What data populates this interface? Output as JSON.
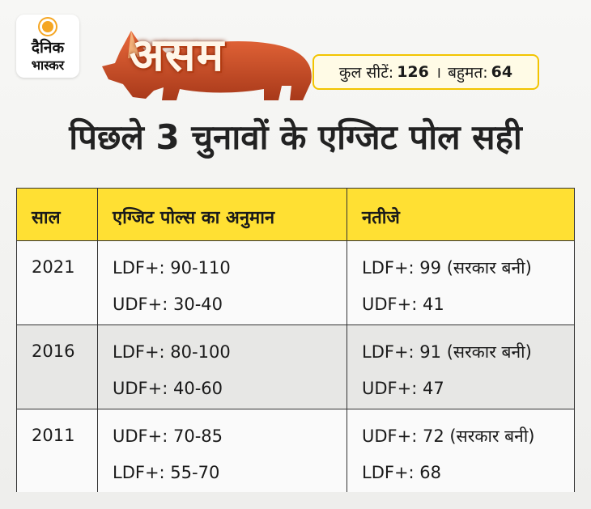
{
  "brand": {
    "line1": "दैनिक",
    "line2": "भास्कर",
    "sun_color": "#f5a623"
  },
  "banner": {
    "state": "असम",
    "rhino_color": "#d8552a"
  },
  "stats": {
    "seats_label": "कुल सीटें:",
    "seats_value": "126",
    "separator": "।",
    "majority_label": "बहुमत:",
    "majority_value": "64",
    "border_color": "#f2c400"
  },
  "headline": "पिछले 3 चुनावों के एग्जिट पोल सही",
  "table": {
    "header_color": "#ffe033",
    "columns": [
      "साल",
      "एग्जिट पोल्स का अनुमान",
      "नतीजे"
    ],
    "rows": [
      {
        "year": "2021",
        "exit_polls": [
          "LDF+: 90-110",
          "UDF+: 30-40"
        ],
        "results": [
          "LDF+: 99 (सरकार बनी)",
          "UDF+: 41"
        ]
      },
      {
        "year": "2016",
        "exit_polls": [
          "LDF+: 80-100",
          "UDF+: 40-60"
        ],
        "results": [
          "LDF+: 91 (सरकार बनी)",
          "UDF+: 47"
        ]
      },
      {
        "year": "2011",
        "exit_polls": [
          "UDF+: 70-85",
          "LDF+: 55-70"
        ],
        "results": [
          "UDF+: 72 (सरकार बनी)",
          "LDF+: 68"
        ]
      }
    ]
  }
}
